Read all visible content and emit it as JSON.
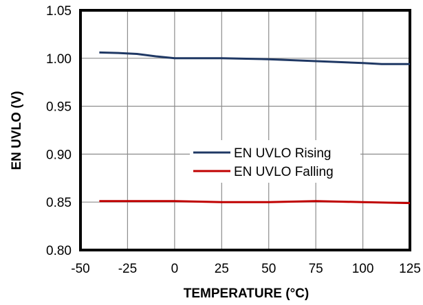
{
  "chart_data": {
    "type": "line",
    "xlabel": "TEMPERATURE   (°C)",
    "ylabel": "EN UVLO (V)",
    "xlim": [
      -50,
      125
    ],
    "ylim": [
      0.8,
      1.05
    ],
    "x_ticks": [
      "-50",
      "-25",
      "0",
      "25",
      "50",
      "75",
      "100",
      "125"
    ],
    "y_ticks": [
      "0.80",
      "0.85",
      "0.90",
      "0.95",
      "1.00",
      "1.05"
    ],
    "grid": true,
    "legend_position": "center-right",
    "series": [
      {
        "name": "EN UVLO Rising",
        "color": "#1f3864",
        "x": [
          -40,
          -30,
          -20,
          -10,
          0,
          25,
          50,
          75,
          100,
          110,
          125
        ],
        "y": [
          1.006,
          1.0055,
          1.0045,
          1.002,
          1.0,
          1.0,
          0.999,
          0.997,
          0.995,
          0.994,
          0.994
        ]
      },
      {
        "name": "EN UVLO Falling",
        "color": "#c00000",
        "x": [
          -40,
          -20,
          0,
          25,
          50,
          75,
          100,
          125
        ],
        "y": [
          0.851,
          0.851,
          0.851,
          0.85,
          0.85,
          0.851,
          0.85,
          0.849
        ]
      }
    ]
  }
}
